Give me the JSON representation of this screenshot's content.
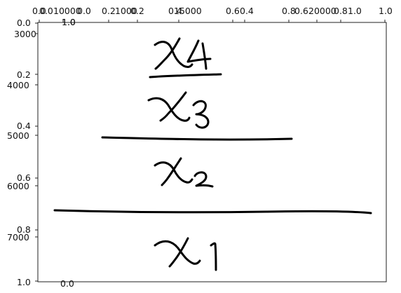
{
  "figure": {
    "top_ticks": [
      {
        "label": "0.0"
      },
      {
        "label": "0.0"
      },
      {
        "label": "10000"
      },
      {
        "label": "1.0"
      },
      {
        "label": "0.0"
      },
      {
        "label": "0.2"
      },
      {
        "label": "1000"
      },
      {
        "label": "0.2"
      },
      {
        "label": "0.4"
      },
      {
        "label": "15000"
      },
      {
        "label": "0.6"
      },
      {
        "label": "0.4"
      },
      {
        "label": "0.8"
      },
      {
        "label": "0.6"
      },
      {
        "label": "20000"
      },
      {
        "label": "0.8"
      },
      {
        "label": "1.0"
      },
      {
        "label": "1.0"
      }
    ],
    "left_ticks": [
      {
        "label": "0.0"
      },
      {
        "label": "3000"
      },
      {
        "label": "0.2"
      },
      {
        "label": "4000"
      },
      {
        "label": "0.4"
      },
      {
        "label": "5000"
      },
      {
        "label": "0.6"
      },
      {
        "label": "6000"
      },
      {
        "label": "0.8"
      },
      {
        "label": "7000"
      },
      {
        "label": "1.0"
      }
    ],
    "stray_labels": [
      {
        "label": "1.0"
      },
      {
        "label": "0.0"
      }
    ],
    "handwriting": [
      {
        "text": "x4"
      },
      {
        "text": "x3"
      },
      {
        "text": "x2"
      },
      {
        "text": "x1"
      }
    ],
    "ink_color": "#000000",
    "axis_color": "#222222"
  }
}
